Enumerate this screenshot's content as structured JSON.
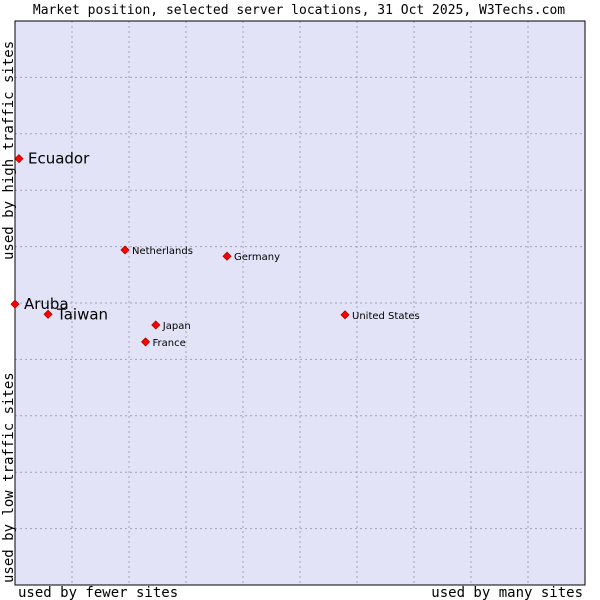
{
  "colors": {
    "plot_background": "#e3e3f8",
    "plot_border": "#000000",
    "point_fill": "#ff0000",
    "point_stroke": "#aa0000"
  },
  "chart_data": {
    "type": "scatter",
    "title": "Market position, selected server locations, 31 Oct 2025, W3Techs.com",
    "xlabel_left": "used by fewer sites",
    "xlabel_right": "used by many sites",
    "ylabel_bottom": "used by low traffic sites",
    "ylabel_top": "used by high traffic sites",
    "xlim": [
      0,
      100
    ],
    "ylim": [
      0,
      100
    ],
    "grid": true,
    "grid_lines_x": [
      10,
      20,
      30,
      40,
      50,
      60,
      70,
      80,
      90
    ],
    "grid_lines_y": [
      10,
      20,
      30,
      40,
      50,
      60,
      70,
      80,
      90
    ],
    "points": [
      {
        "label": "Ecuador",
        "x": 0.7,
        "y": 75.6,
        "label_size": "large"
      },
      {
        "label": "Netherlands",
        "x": 19.3,
        "y": 59.4,
        "label_size": "small"
      },
      {
        "label": "Germany",
        "x": 37.2,
        "y": 58.3,
        "label_size": "small"
      },
      {
        "label": "Aruba",
        "x": 0,
        "y": 49.8,
        "label_size": "large"
      },
      {
        "label": "Taiwan",
        "x": 5.8,
        "y": 48.0,
        "label_size": "large"
      },
      {
        "label": "United States",
        "x": 57.9,
        "y": 47.9,
        "label_size": "small"
      },
      {
        "label": "Japan",
        "x": 24.7,
        "y": 46.1,
        "label_size": "small"
      },
      {
        "label": "France",
        "x": 22.9,
        "y": 43.1,
        "label_size": "small"
      }
    ]
  }
}
